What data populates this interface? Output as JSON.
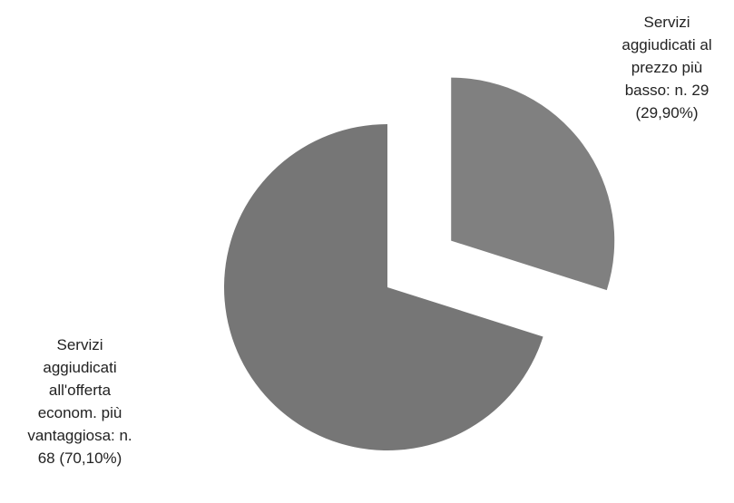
{
  "chart_data": {
    "type": "pie",
    "categories": [
      "Servizi aggiudicati al prezzo più basso: n. 29 (29,90%)",
      "Servizi aggiudicati all'offerta econom. più vantaggiosa: n. 68 (70,10%)"
    ],
    "values": [
      29,
      68
    ],
    "colors": [
      "#808080",
      "#767676"
    ]
  }
}
